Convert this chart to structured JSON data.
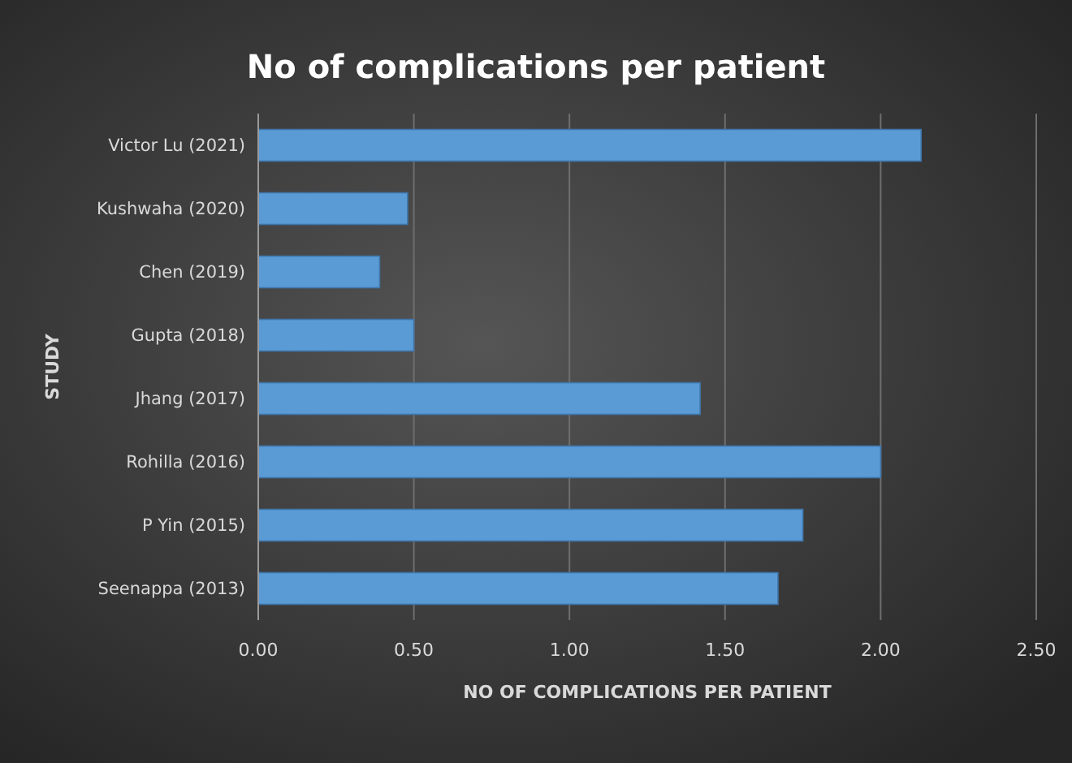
{
  "chart_data": {
    "type": "bar",
    "orientation": "horizontal",
    "title": "No of complications per patient",
    "xlabel": "NO OF COMPLICATIONS PER PATIENT",
    "ylabel": "STUDY",
    "categories": [
      "Victor Lu (2021)",
      "Kushwaha (2020)",
      "Chen (2019)",
      "Gupta (2018)",
      "Jhang (2017)",
      "Rohilla (2016)",
      "P Yin (2015)",
      "Seenappa (2013)"
    ],
    "values": [
      2.13,
      0.48,
      0.39,
      0.5,
      1.42,
      2.0,
      1.75,
      1.67
    ],
    "color": "#5b9bd5",
    "xlim": [
      0,
      2.5
    ],
    "xticks": [
      {
        "value": 0,
        "label": "0.00"
      },
      {
        "value": 0.5,
        "label": "0.50"
      },
      {
        "value": 1,
        "label": "1.00"
      },
      {
        "value": 1.5,
        "label": "1.50"
      },
      {
        "value": 2,
        "label": "2.00"
      },
      {
        "value": 2.5,
        "label": "2.50"
      }
    ],
    "grid": "x"
  }
}
